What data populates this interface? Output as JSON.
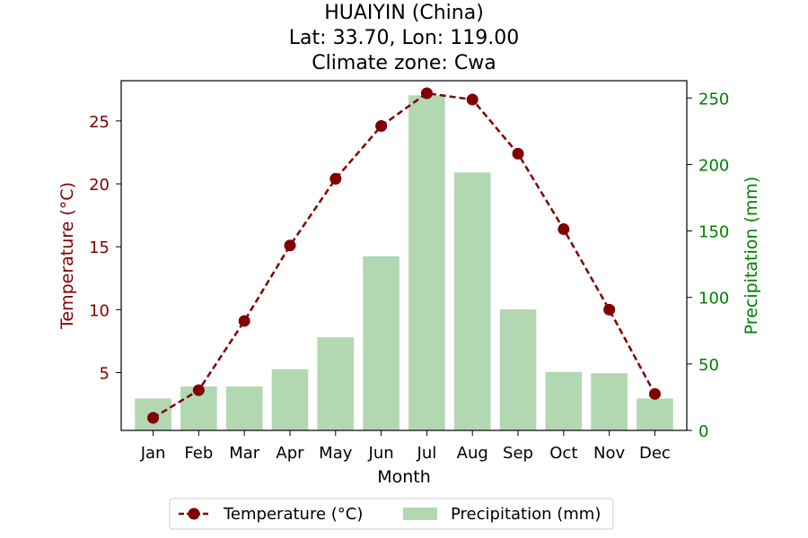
{
  "chart_data": {
    "type": "bar+line",
    "title_lines": [
      "HUAIYIN (China)",
      "Lat: 33.70, Lon: 119.00",
      "Climate zone: Cwa"
    ],
    "xlabel": "Month",
    "ylabel_left": "Temperature (°C)",
    "ylabel_right": "Precipitation (mm)",
    "categories": [
      "Jan",
      "Feb",
      "Mar",
      "Apr",
      "May",
      "Jun",
      "Jul",
      "Aug",
      "Sep",
      "Oct",
      "Nov",
      "Dec"
    ],
    "temperature": {
      "name": "Temperature (°C)",
      "values": [
        1.4,
        3.6,
        9.1,
        15.1,
        20.4,
        24.6,
        27.2,
        26.7,
        22.4,
        16.4,
        10.0,
        3.3
      ],
      "ylim": [
        0.4,
        28.2
      ],
      "ticks": [
        5,
        10,
        15,
        20,
        25
      ],
      "color": "#800000"
    },
    "precipitation": {
      "name": "Precipitation (mm)",
      "values": [
        24,
        33,
        33,
        46,
        70,
        131,
        252,
        194,
        91,
        44,
        43,
        24
      ],
      "ylim": [
        0,
        263
      ],
      "ticks": [
        0,
        50,
        100,
        150,
        200,
        250
      ],
      "color": "#b2d8b2",
      "axis_color": "#008000"
    },
    "legend": {
      "position": "bottom-center",
      "items": [
        "Temperature (°C)",
        "Precipitation (mm)"
      ]
    }
  }
}
